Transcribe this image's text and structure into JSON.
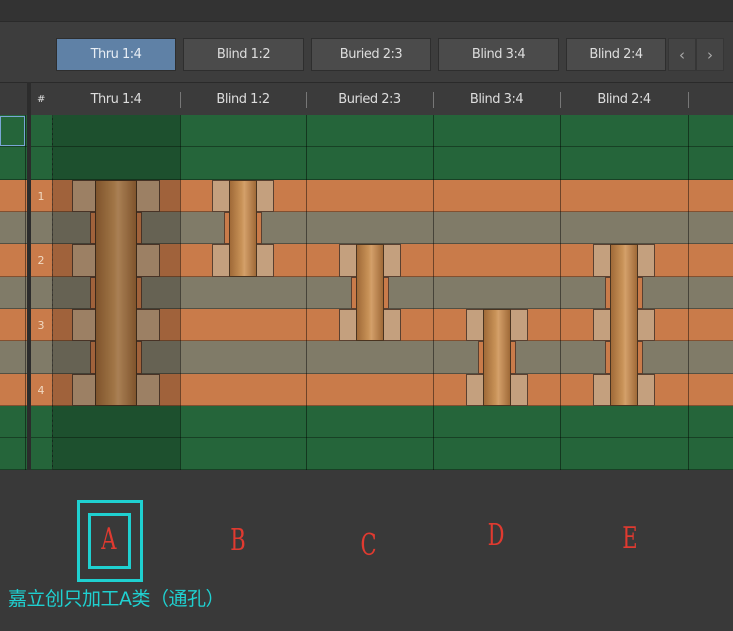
{
  "toolbar": {
    "tabs": [
      {
        "label": "Thru 1:4",
        "active": true
      },
      {
        "label": "Blind 1:2"
      },
      {
        "label": "Buried 2:3"
      },
      {
        "label": "Blind 3:4"
      },
      {
        "label": "Blind 2:4"
      }
    ],
    "prev_icon": "‹",
    "next_icon": "›"
  },
  "table": {
    "hash_header": "#",
    "columns": [
      "Thru 1:4",
      "Blind 1:2",
      "Buried 2:3",
      "Blind 3:4",
      "Blind 2:4"
    ]
  },
  "layers": [
    "1",
    "2",
    "3",
    "4"
  ],
  "vias": [
    {
      "name": "Thru 1:4",
      "from": 1,
      "to": 4
    },
    {
      "name": "Blind 1:2",
      "from": 1,
      "to": 2
    },
    {
      "name": "Buried 2:3",
      "from": 2,
      "to": 3
    },
    {
      "name": "Blind 3:4",
      "from": 3,
      "to": 4
    },
    {
      "name": "Blind 2:4",
      "from": 2,
      "to": 4
    }
  ],
  "annotations": {
    "letters": [
      "A",
      "B",
      "C",
      "D",
      "E"
    ],
    "caption": "嘉立创只加工A类（通孔）"
  },
  "colors": {
    "copper": "#c97b4a",
    "dielectric": "#807b68",
    "soldermask": "#25653a",
    "selected_tab": "#5f81a6",
    "annotation_red": "#e03a30",
    "annotation_cyan": "#1fd0d0"
  }
}
